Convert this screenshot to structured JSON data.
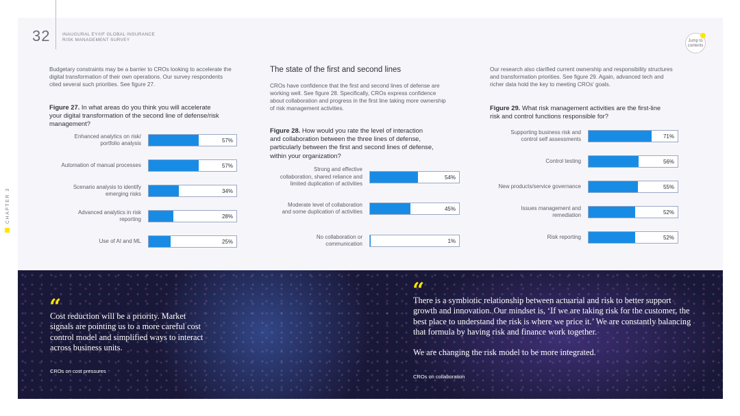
{
  "header": {
    "page_number": "32",
    "publication_line1": "INAUGURAL EY/IIF GLOBAL INSURANCE",
    "publication_line2": "RISK MANAGEMENT SURVEY",
    "chapter": "CHAPTER 3",
    "jump_line1": "Jump to",
    "jump_line2": "contents"
  },
  "col1": {
    "intro_lines": [
      "Budgetary constraints may be a barrier to CROs looking to accelerate the",
      "digital transformation of their own operations. Our survey respondents",
      "cited several such priorities. See figure 27."
    ],
    "fig_label": "Figure 27.",
    "fig_title_lines": [
      " In what areas do you think you will accelerate",
      "your digital transformation of the second line of defense/risk",
      "management?"
    ]
  },
  "col2": {
    "heading": "The state of the first and second lines",
    "intro_lines": [
      "CROs have confidence that the first and second lines of defense are",
      "working well. See figure 28. Specifically, CROs express confidence",
      "about collaboration and progress in the first line taking more ownership",
      "of risk management activities."
    ],
    "fig_label": "Figure 28.",
    "fig_title_lines": [
      " How would you rate the level of interaction",
      "and collaboration between the three lines of defense,",
      "particularly between the first and second lines of defense,",
      "within your organization?"
    ]
  },
  "col3": {
    "intro_lines": [
      "Our research also clarified current ownership and responsibility structures",
      "and transformation priorities. See figure 29. Again, advanced tech and",
      "richer data hold the key to meeting CROs' goals."
    ],
    "fig_label": "Figure 29.",
    "fig_title_lines": [
      " What risk management activities are the first-line",
      "risk and control functions responsible for?"
    ]
  },
  "chart_data": [
    {
      "type": "bar",
      "title": "Figure 27.",
      "categories": [
        [
          "Enhanced analytics on risk/",
          "portfolio analysis"
        ],
        [
          "Automation of manual processes"
        ],
        [
          "Scenario analysis to identify",
          "emerging risks"
        ],
        [
          "Advanced analytics in risk",
          "reporting"
        ],
        [
          "Use of AI and ML"
        ]
      ],
      "values": [
        57,
        57,
        34,
        28,
        25
      ],
      "value_labels": [
        "57%",
        "57%",
        "34%",
        "28%",
        "25%"
      ],
      "xlim": [
        0,
        100
      ],
      "orientation": "horizontal"
    },
    {
      "type": "bar",
      "title": "Figure 28.",
      "categories": [
        [
          "Strong and effective",
          "collaboration, shared reliance and",
          "limited duplication of activities"
        ],
        [
          "Moderate level of collaboration",
          "and some duplication of activities"
        ],
        [
          "No collaboration or",
          "communication"
        ]
      ],
      "values": [
        54,
        45,
        1
      ],
      "value_labels": [
        "54%",
        "45%",
        "1%"
      ],
      "xlim": [
        0,
        100
      ],
      "orientation": "horizontal"
    },
    {
      "type": "bar",
      "title": "Figure 29.",
      "categories": [
        [
          "Supporting business risk and",
          "control self assessments"
        ],
        [
          "Control testing"
        ],
        [
          "New products/service governance"
        ],
        [
          "Issues management and",
          "remediation"
        ],
        [
          "Risk reporting"
        ]
      ],
      "values": [
        71,
        56,
        55,
        52,
        52
      ],
      "value_labels": [
        "71%",
        "56%",
        "55%",
        "52%",
        "52%"
      ],
      "xlim": [
        0,
        100
      ],
      "orientation": "horizontal"
    }
  ],
  "quotes": {
    "left_mark": "“",
    "left_lines": [
      "Cost reduction will be a priority. Market",
      "signals are pointing us to a more careful cost",
      "control model and simplified ways to interact",
      "across business units."
    ],
    "left_attr": "CROs on cost pressures",
    "right_mark": "“",
    "right_lines": [
      "There is a symbiotic relationship between actuarial and risk to better support",
      "growth and innovation. Our mindset is, ‘If we are taking risk for the customer, the",
      "best place to understand the risk is where we price it.’ We are constantly balancing",
      "that formula by having risk and finance work together.",
      "",
      "We are changing the risk model to be more integrated."
    ],
    "right_attr": "CROs on collaboration"
  },
  "colors": {
    "bar": "#188ce5",
    "accent": "#ffe600",
    "dark_bg": "#1a1838"
  }
}
